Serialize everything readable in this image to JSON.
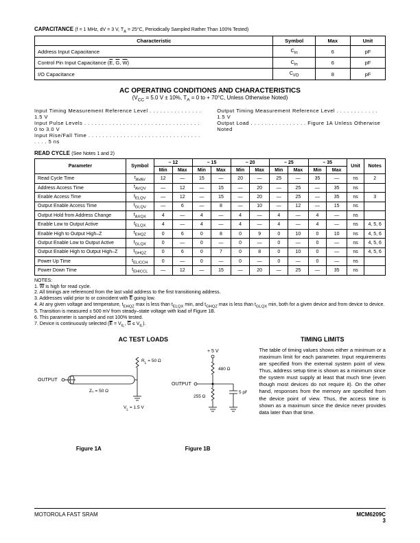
{
  "cap": {
    "title": "CAPACITANCE",
    "cond": "(f = 1 MHz, dV = 3 V, T<sub>A</sub> = 25°C, Periodically Sampled Rather Than 100% Tested)",
    "headers": [
      "Characteristic",
      "Symbol",
      "Max",
      "Unit"
    ],
    "rows": [
      [
        "Address Input Capacitance",
        "C<sub>in</sub>",
        "6",
        "pF"
      ],
      [
        "Control Pin Input Capacitance (<span class=\"ov\">E</span>, <span class=\"ov\">G</span>, <span class=\"ov\">W</span>)",
        "C<sub>in</sub>",
        "6",
        "pF"
      ],
      [
        "I/O Capacitance",
        "C<sub>I/O</sub>",
        "8",
        "pF"
      ]
    ]
  },
  "ac": {
    "heading": "AC OPERATING CONDITIONS AND CHARACTERISTICS",
    "sub": "(V<sub>CC</sub> = 5.0 V ± 10%, T<sub>A</sub> = 0 to + 70°C, Unless Otherwise Noted)",
    "left": [
      "Input Timing Measurement Reference Level . . . . . . . . . . . . . . . 1.5 V",
      "Input Pulse Levels . . . . . . . . . . . . . . . . . . . . . . . . . . . . . . . . . 0 to 3.0 V",
      "Input Rise/Fall Time . . . . . . . . . . . . . . . . . . . . . . . . . . . . . . . . . . . . 5 ns"
    ],
    "right": [
      "Output Timing Measurement Reference Level . . . . . . . . . . . . 1.5 V",
      "Output Load . . . . . . . . . . . . . . . . Figure 1A Unless Otherwise Noted"
    ]
  },
  "read": {
    "title": "READ CYCLE",
    "note": "(See Notes 1 and 2)",
    "speeds": [
      "– 12",
      "– 15",
      "– 20",
      "– 25",
      "– 35"
    ],
    "colhdr": [
      "Parameter",
      "Symbol",
      "Min",
      "Max",
      "Min",
      "Max",
      "Min",
      "Max",
      "Min",
      "Max",
      "Min",
      "Max",
      "Unit",
      "Notes"
    ],
    "rows": [
      [
        "Read Cycle Time",
        "t<sub>AVAV</sub>",
        "12",
        "—",
        "15",
        "—",
        "20",
        "—",
        "25",
        "—",
        "35",
        "—",
        "ns",
        "2"
      ],
      [
        "Address Access Time",
        "t<sub>AVQV</sub>",
        "—",
        "12",
        "—",
        "15",
        "—",
        "20",
        "—",
        "25",
        "—",
        "35",
        "ns",
        ""
      ],
      [
        "Enable Access Time",
        "t<sub>ELQV</sub>",
        "—",
        "12",
        "—",
        "15",
        "—",
        "20",
        "—",
        "25",
        "—",
        "35",
        "ns",
        "3"
      ],
      [
        "Output Enable Access Time",
        "t<sub>GLQV</sub>",
        "—",
        "6",
        "—",
        "8",
        "—",
        "10",
        "—",
        "12",
        "—",
        "15",
        "ns",
        ""
      ],
      [
        "Output Hold from Address Change",
        "t<sub>AXQX</sub>",
        "4",
        "—",
        "4",
        "—",
        "4",
        "—",
        "4",
        "—",
        "4",
        "—",
        "ns",
        ""
      ],
      [
        "Enable Low to Output Active",
        "t<sub>ELQX</sub>",
        "4",
        "—",
        "4",
        "—",
        "4",
        "—",
        "4",
        "—",
        "4",
        "—",
        "ns",
        "4, 5, 6"
      ],
      [
        "Enable High to Output High–Z",
        "t<sub>EHQZ</sub>",
        "0",
        "6",
        "0",
        "8",
        "0",
        "9",
        "0",
        "10",
        "0",
        "10",
        "ns",
        "4, 5, 6"
      ],
      [
        "Output Enable Low to Output Active",
        "t<sub>GLQX</sub>",
        "0",
        "—",
        "0",
        "—",
        "0",
        "—",
        "0",
        "—",
        "0",
        "—",
        "ns",
        "4, 5, 6"
      ],
      [
        "Output Enable High to Output High–Z",
        "t<sub>GHQZ</sub>",
        "0",
        "6",
        "0",
        "7",
        "0",
        "8",
        "0",
        "10",
        "0",
        "—",
        "ns",
        "4, 5, 6"
      ],
      [
        "Power Up Time",
        "t<sub>ELICCH</sub>",
        "0",
        "—",
        "0",
        "—",
        "0",
        "—",
        "0",
        "—",
        "0",
        "—",
        "ns",
        ""
      ],
      [
        "Power Down Time",
        "t<sub>EHICCL</sub>",
        "—",
        "12",
        "—",
        "15",
        "—",
        "20",
        "—",
        "25",
        "—",
        "35",
        "ns",
        ""
      ]
    ]
  },
  "notes": {
    "label": "NOTES:",
    "items": [
      "1. <span class=\"ov\">W</span> is high for read cycle.",
      "2. All timings are referenced from the last valid address to the first transitioning address.",
      "3. Addresses valid prior to or coincident with <span class=\"ov\">E</span> going low.",
      "4. At any given voltage and temperature, t<sub>EHQZ</sub> max is less than t<sub>ELQX</sub> min, and t<sub>GHQZ</sub> max is less than t<sub>GLQX</sub> min, both for a given device and from device to device.",
      "5. Transition is measured ± 500 mV from steady–state voltage with load of Figure 1B.",
      "6. This parameter is sampled and not 100% tested.",
      "7. Device is continuously selected (<span class=\"ov\">E</span> = V<sub>IL</sub>, <span class=\"ov\">G</span> ≤ V<sub>IL</sub>)."
    ]
  },
  "loads": {
    "title": "AC TEST LOADS",
    "fig1a": "Figure 1A",
    "fig1b": "Figure 1B",
    "labels": {
      "output": "OUTPUT",
      "rl": "R<sub>L</sub> = 50 Ω",
      "z0": "Z<sub>0</sub> = 50 Ω",
      "vl": "V<sub>L</sub> = 1.5 V",
      "v5": "+ 5 V",
      "r480": "480 Ω",
      "r255": "255 Ω",
      "c5": "5 pF"
    }
  },
  "timing": {
    "title": "TIMING LIMITS",
    "body": "The table of timing values shows either a minimum or a maximum limit for each parameter. Input requirements are specified from the external system point of view. Thus, address setup time is shown as a minimum since the system must supply at least that much time (even though most devices do not require it). On the other hand, responses from the memory are specified from the device point of view. Thus, the access time is shown as a maximum since the device never provides data later than that time."
  },
  "footer": {
    "left": "MOTOROLA FAST SRAM",
    "right": "MCM6209C",
    "page": "3"
  }
}
